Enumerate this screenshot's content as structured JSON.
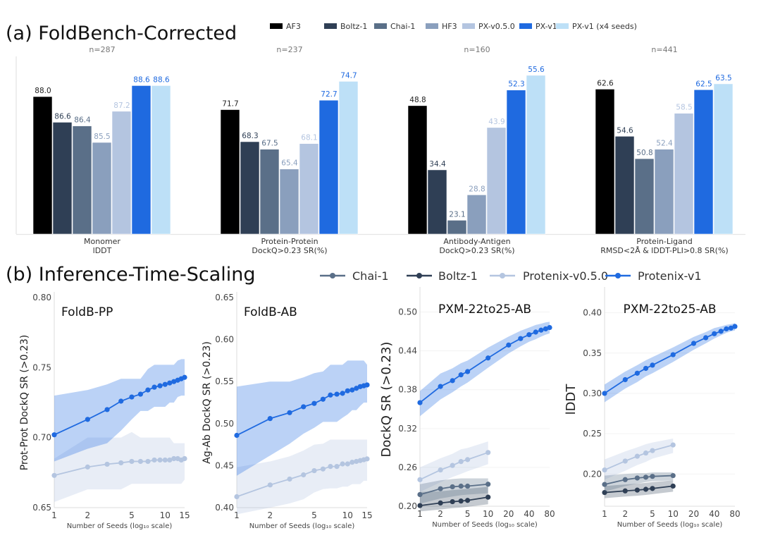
{
  "figure": {
    "panel_a_title": "(a) FoldBench-Corrected",
    "panel_b_title": "(b) Inference-Time-Scaling"
  },
  "colors": {
    "AF3": "#000000",
    "Boltz-1": "#2f3f55",
    "Chai-1": "#5a6f88",
    "HF3": "#8a9fbd",
    "PX-v0.5.0": "#b4c5e0",
    "PX-v1": "#1f6ae0",
    "PX-v1 (x4 seeds)": "#bde0f7",
    "Protenix-v1": "#1f6ae0",
    "Protenix-v0.5.0": "#b4c5e0"
  },
  "chart_data": [
    {
      "type": "bar",
      "title": "(a) FoldBench-Corrected",
      "legend": [
        "AF3",
        "Boltz-1",
        "Chai-1",
        "HF3",
        "PX-v0.5.0",
        "PX-v1",
        "PX-v1 (x4 seeds)"
      ],
      "legend_position": "top-right",
      "groups": [
        {
          "name": "Monomer",
          "metric": "lDDT",
          "n": "n=287",
          "values": [
            88.0,
            86.6,
            86.4,
            85.5,
            87.2,
            88.6,
            88.6
          ],
          "ylim": [
            80.5,
            89.5
          ]
        },
        {
          "name": "Protein-Protein",
          "metric": "DockQ>0.23 SR(%)",
          "n": "n=237",
          "values": [
            71.7,
            68.3,
            67.5,
            65.4,
            68.1,
            72.7,
            74.7
          ],
          "ylim": [
            58.5,
            76
          ]
        },
        {
          "name": "Antibody-Antigen",
          "metric": "DockQ>0.23 SR(%)",
          "n": "n=160",
          "values": [
            48.8,
            34.4,
            23.1,
            28.8,
            43.9,
            52.3,
            55.6
          ],
          "ylim": [
            20,
            57
          ]
        },
        {
          "name": "Protein-Ligand",
          "metric": "RMSD<2Å & lDDT-PLI>0.8 SR(%)",
          "n": "n=441",
          "values": [
            62.6,
            54.6,
            50.8,
            52.4,
            58.5,
            62.5,
            63.5
          ],
          "ylim": [
            38,
            66
          ]
        }
      ],
      "label_colors": [
        "#222222",
        "#2f3f55",
        "#5a6f88",
        "#8a9fbd",
        "#b4c5e0",
        "#1f6ae0",
        "#1f6ae0"
      ]
    },
    {
      "type": "line",
      "title": "FoldB-PP",
      "xlabel": "Number of Seeds (log₁₀ scale)",
      "ylabel": "Prot-Prot DockQ SR (>0.23)",
      "xscale": "log",
      "xlim": [
        1,
        15
      ],
      "ylim": [
        0.65,
        0.8
      ],
      "xticks": [
        1,
        2,
        5,
        10,
        15
      ],
      "yticks": [
        "0.65",
        "0.70",
        "0.75",
        "0.80"
      ],
      "series": [
        {
          "name": "Protenix-v0.5.0",
          "x": [
            1,
            2,
            3,
            4,
            5,
            6,
            7,
            8,
            9,
            10,
            11,
            12,
            13,
            14,
            15
          ],
          "y": [
            0.673,
            0.679,
            0.681,
            0.682,
            0.683,
            0.683,
            0.683,
            0.684,
            0.684,
            0.684,
            0.684,
            0.685,
            0.685,
            0.684,
            0.685
          ],
          "lo": [
            0.654,
            0.663,
            0.663,
            0.663,
            0.667,
            0.667,
            0.667,
            0.667,
            0.667,
            0.667,
            0.667,
            0.667,
            0.667,
            0.667,
            0.67
          ],
          "hi": [
            0.685,
            0.7,
            0.7,
            0.7,
            0.704,
            0.7,
            0.7,
            0.7,
            0.7,
            0.7,
            0.7,
            0.696,
            0.696,
            0.696,
            0.696
          ]
        },
        {
          "name": "Protenix-v1",
          "x": [
            1,
            2,
            3,
            4,
            5,
            6,
            7,
            8,
            9,
            10,
            11,
            12,
            13,
            14,
            15
          ],
          "y": [
            0.702,
            0.713,
            0.72,
            0.726,
            0.729,
            0.731,
            0.734,
            0.736,
            0.737,
            0.738,
            0.739,
            0.74,
            0.741,
            0.742,
            0.743
          ],
          "lo": [
            0.683,
            0.692,
            0.696,
            0.705,
            0.713,
            0.719,
            0.719,
            0.722,
            0.722,
            0.722,
            0.725,
            0.725,
            0.729,
            0.73,
            0.73
          ],
          "hi": [
            0.73,
            0.734,
            0.738,
            0.742,
            0.742,
            0.742,
            0.749,
            0.752,
            0.752,
            0.752,
            0.752,
            0.752,
            0.755,
            0.756,
            0.756
          ]
        }
      ]
    },
    {
      "type": "line",
      "title": "FoldB-AB",
      "xlabel": "Number of Seeds (log₁₀ scale)",
      "ylabel": "Ag-Ab DockQ SR (>0.23)",
      "xscale": "log",
      "xlim": [
        1,
        15
      ],
      "ylim": [
        0.4,
        0.65
      ],
      "xticks": [
        1,
        2,
        5,
        10,
        15
      ],
      "yticks": [
        "0.40",
        "0.45",
        "0.50",
        "0.55",
        "0.60",
        "0.65"
      ],
      "series": [
        {
          "name": "Protenix-v0.5.0",
          "x": [
            1,
            2,
            3,
            4,
            5,
            6,
            7,
            8,
            9,
            10,
            11,
            12,
            13,
            14,
            15
          ],
          "y": [
            0.413,
            0.427,
            0.434,
            0.439,
            0.444,
            0.446,
            0.449,
            0.449,
            0.452,
            0.452,
            0.454,
            0.455,
            0.456,
            0.457,
            0.458
          ],
          "lo": [
            0.392,
            0.4,
            0.405,
            0.41,
            0.418,
            0.422,
            0.423,
            0.423,
            0.425,
            0.425,
            0.428,
            0.428,
            0.428,
            0.432,
            0.432
          ],
          "hi": [
            0.448,
            0.455,
            0.461,
            0.468,
            0.475,
            0.476,
            0.481,
            0.481,
            0.481,
            0.481,
            0.481,
            0.481,
            0.481,
            0.481,
            0.481
          ]
        },
        {
          "name": "Protenix-v1",
          "x": [
            1,
            2,
            3,
            4,
            5,
            6,
            7,
            8,
            9,
            10,
            11,
            12,
            13,
            14,
            15
          ],
          "y": [
            0.486,
            0.506,
            0.513,
            0.52,
            0.524,
            0.529,
            0.534,
            0.535,
            0.536,
            0.539,
            0.54,
            0.542,
            0.544,
            0.545,
            0.546
          ],
          "lo": [
            0.438,
            0.462,
            0.476,
            0.488,
            0.495,
            0.502,
            0.502,
            0.502,
            0.507,
            0.511,
            0.516,
            0.516,
            0.521,
            0.525,
            0.525
          ],
          "hi": [
            0.544,
            0.55,
            0.55,
            0.555,
            0.56,
            0.562,
            0.57,
            0.57,
            0.57,
            0.575,
            0.575,
            0.575,
            0.575,
            0.575,
            0.57
          ]
        }
      ]
    },
    {
      "type": "line",
      "title": "PXM-22to25-AB",
      "xlabel": "Number of Seeds (log₁₀ scale)",
      "ylabel": "DockQ SR (>0.23)",
      "xscale": "log",
      "xlim": [
        1,
        80
      ],
      "ylim": [
        0.2,
        0.53
      ],
      "xticks": [
        1,
        2,
        5,
        10,
        20,
        40,
        80
      ],
      "yticks": [
        "0.20",
        "0.26",
        "0.32",
        "0.38",
        "0.44",
        "0.50"
      ],
      "series": [
        {
          "name": "Boltz-1",
          "x": [
            1,
            2,
            3,
            4,
            5,
            10
          ],
          "y": [
            0.201,
            0.205,
            0.207,
            0.208,
            0.209,
            0.214
          ],
          "lo": [
            0.192,
            0.195,
            0.197,
            0.198,
            0.199,
            0.203
          ],
          "hi": [
            0.222,
            0.223,
            0.225,
            0.226,
            0.227,
            0.23
          ]
        },
        {
          "name": "Chai-1",
          "x": [
            1,
            2,
            3,
            4,
            5,
            10
          ],
          "y": [
            0.218,
            0.227,
            0.23,
            0.231,
            0.231,
            0.234
          ],
          "lo": [
            0.204,
            0.212,
            0.215,
            0.217,
            0.218,
            0.22
          ],
          "hi": [
            0.234,
            0.24,
            0.242,
            0.243,
            0.243,
            0.243
          ]
        },
        {
          "name": "Protenix-v0.5.0",
          "x": [
            1,
            2,
            3,
            4,
            5,
            10
          ],
          "y": [
            0.241,
            0.256,
            0.263,
            0.269,
            0.272,
            0.283
          ],
          "lo": [
            0.222,
            0.237,
            0.245,
            0.25,
            0.254,
            0.265
          ],
          "hi": [
            0.26,
            0.274,
            0.281,
            0.288,
            0.29,
            0.3
          ]
        },
        {
          "name": "Protenix-v1",
          "x": [
            1,
            2,
            3,
            4,
            5,
            10,
            20,
            30,
            40,
            50,
            60,
            70,
            80
          ],
          "y": [
            0.36,
            0.385,
            0.394,
            0.403,
            0.408,
            0.429,
            0.449,
            0.459,
            0.465,
            0.469,
            0.472,
            0.474,
            0.476
          ],
          "lo": [
            0.339,
            0.365,
            0.376,
            0.385,
            0.391,
            0.414,
            0.436,
            0.447,
            0.454,
            0.458,
            0.462,
            0.465,
            0.467
          ],
          "hi": [
            0.378,
            0.405,
            0.413,
            0.421,
            0.425,
            0.445,
            0.462,
            0.471,
            0.476,
            0.48,
            0.482,
            0.484,
            0.485
          ]
        }
      ]
    },
    {
      "type": "line",
      "title": "PXM-22to25-AB",
      "xlabel": "Number of Seeds (log₁₀ scale)",
      "ylabel": "lDDT",
      "xscale": "log",
      "xlim": [
        1,
        80
      ],
      "ylim": [
        0.16,
        0.425
      ],
      "xticks": [
        1,
        2,
        5,
        10,
        20,
        40,
        80
      ],
      "yticks": [
        "0.20",
        "0.25",
        "0.30",
        "0.35",
        "0.40"
      ],
      "series": [
        {
          "name": "Boltz-1",
          "x": [
            1,
            2,
            3,
            4,
            5,
            10
          ],
          "y": [
            0.177,
            0.179,
            0.18,
            0.181,
            0.182,
            0.185
          ],
          "lo": [
            0.17,
            0.172,
            0.173,
            0.174,
            0.175,
            0.178
          ],
          "hi": [
            0.185,
            0.187,
            0.188,
            0.189,
            0.19,
            0.192
          ]
        },
        {
          "name": "Chai-1",
          "x": [
            1,
            2,
            3,
            4,
            5,
            10
          ],
          "y": [
            0.187,
            0.193,
            0.195,
            0.196,
            0.197,
            0.198
          ],
          "lo": [
            0.178,
            0.185,
            0.188,
            0.19,
            0.191,
            0.192
          ],
          "hi": [
            0.198,
            0.2,
            0.201,
            0.201,
            0.202,
            0.202
          ]
        },
        {
          "name": "Protenix-v0.5.0",
          "x": [
            1,
            2,
            3,
            4,
            5,
            10
          ],
          "y": [
            0.205,
            0.216,
            0.222,
            0.226,
            0.229,
            0.236
          ],
          "lo": [
            0.193,
            0.204,
            0.211,
            0.215,
            0.219,
            0.226
          ],
          "hi": [
            0.218,
            0.228,
            0.233,
            0.237,
            0.239,
            0.244
          ]
        },
        {
          "name": "Protenix-v1",
          "x": [
            1,
            2,
            3,
            4,
            5,
            10,
            20,
            30,
            40,
            50,
            60,
            70,
            80
          ],
          "y": [
            0.3,
            0.317,
            0.325,
            0.331,
            0.335,
            0.348,
            0.362,
            0.369,
            0.374,
            0.377,
            0.38,
            0.381,
            0.383
          ],
          "lo": [
            0.289,
            0.306,
            0.314,
            0.321,
            0.325,
            0.339,
            0.354,
            0.362,
            0.368,
            0.372,
            0.375,
            0.377,
            0.378
          ],
          "hi": [
            0.311,
            0.327,
            0.335,
            0.341,
            0.345,
            0.357,
            0.37,
            0.376,
            0.381,
            0.383,
            0.385,
            0.386,
            0.387
          ]
        }
      ]
    }
  ],
  "legend_b": [
    "Chai-1",
    "Boltz-1",
    "Protenix-v0.5.0",
    "Protenix-v1"
  ],
  "series_styles": {
    "Chai-1": {
      "line": "#5a6f88",
      "band": "#5a6f88",
      "band_opacity": 0.3
    },
    "Boltz-1": {
      "line": "#2f3f55",
      "band": "#2f3f55",
      "band_opacity": 0.28
    },
    "Protenix-v0.5.0": {
      "line": "#b4c5e0",
      "band": "#b4c5e0",
      "band_opacity": 0.3
    },
    "Protenix-v1": {
      "line": "#1f6ae0",
      "band": "#1f6ae0",
      "band_opacity": 0.3
    }
  }
}
